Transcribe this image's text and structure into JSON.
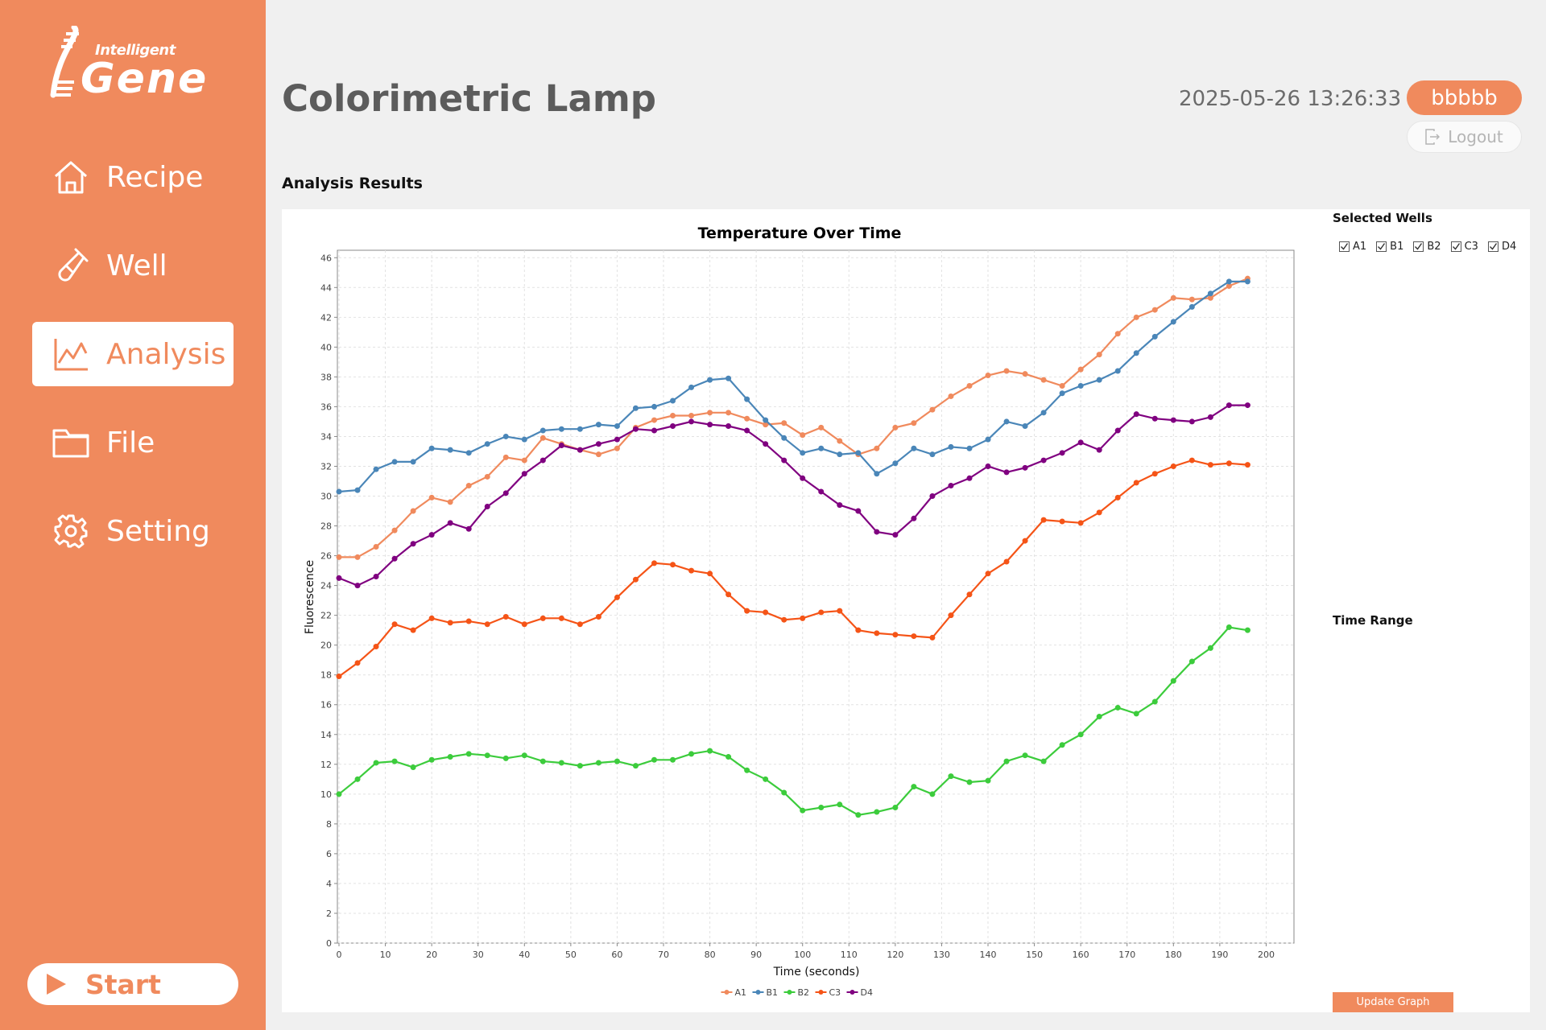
{
  "brand": {
    "small": "Intelligent",
    "big": "Gene"
  },
  "sidebar": {
    "items": [
      {
        "label": "Recipe",
        "icon": "home-icon"
      },
      {
        "label": "Well",
        "icon": "test-tube-icon"
      },
      {
        "label": "Analysis",
        "icon": "line-chart-icon",
        "active": true
      },
      {
        "label": "File",
        "icon": "folder-icon"
      },
      {
        "label": "Setting",
        "icon": "gear-icon"
      }
    ],
    "start_label": "Start"
  },
  "header": {
    "title": "Colorimetric Lamp",
    "datetime": "2025-05-26 13:26:33",
    "user": "bbbbb",
    "logout_label": "Logout"
  },
  "main": {
    "section_title": "Analysis Results",
    "selected_wells_label": "Selected Wells",
    "wells": [
      {
        "label": "A1",
        "checked": true
      },
      {
        "label": "B1",
        "checked": true
      },
      {
        "label": "B2",
        "checked": true
      },
      {
        "label": "C3",
        "checked": true
      },
      {
        "label": "D4",
        "checked": true
      }
    ],
    "time_range_label": "Time Range",
    "update_label": "Update Graph"
  },
  "colors": {
    "accent": "#f08a5d"
  },
  "chart_data": {
    "type": "line",
    "title": "Temperature Over Time",
    "xlabel": "Time (seconds)",
    "ylabel": "Fluorescence",
    "xlim": [
      0,
      206
    ],
    "ylim": [
      0,
      46.5
    ],
    "xticks": [
      0,
      10,
      20,
      30,
      40,
      50,
      60,
      70,
      80,
      90,
      100,
      110,
      120,
      130,
      140,
      150,
      160,
      170,
      180,
      190,
      200
    ],
    "yticks": [
      0,
      2,
      4,
      6,
      8,
      10,
      12,
      14,
      16,
      18,
      20,
      22,
      24,
      26,
      28,
      30,
      32,
      34,
      36,
      38,
      40,
      42,
      44,
      46
    ],
    "grid": true,
    "legend_position": "bottom-center",
    "x": [
      0,
      4,
      8,
      12,
      16,
      20,
      24,
      28,
      32,
      36,
      40,
      44,
      48,
      52,
      56,
      60,
      64,
      68,
      72,
      76,
      80,
      84,
      88,
      92,
      96,
      100,
      104,
      108,
      112,
      116,
      120,
      124,
      128,
      132,
      136,
      140,
      144,
      148,
      152,
      156,
      160,
      164,
      168,
      172,
      176,
      180,
      184,
      188,
      192,
      196
    ],
    "series": [
      {
        "name": "A1",
        "color": "#f08a5d",
        "values": [
          25.9,
          25.9,
          26.6,
          27.7,
          29.0,
          29.9,
          29.6,
          30.7,
          31.3,
          32.6,
          32.4,
          33.9,
          33.5,
          33.1,
          32.8,
          33.2,
          34.6,
          35.1,
          35.4,
          35.4,
          35.6,
          35.6,
          35.2,
          34.8,
          34.9,
          34.1,
          34.6,
          33.7,
          32.8,
          33.2,
          34.6,
          34.9,
          35.8,
          36.7,
          37.4,
          38.1,
          38.4,
          38.2,
          37.8,
          37.4,
          38.5,
          39.5,
          40.9,
          42.0,
          42.5,
          43.3,
          43.2,
          43.3,
          44.1,
          44.6
        ]
      },
      {
        "name": "B1",
        "color": "#4a86b8",
        "values": [
          30.3,
          30.4,
          31.8,
          32.3,
          32.3,
          33.2,
          33.1,
          32.9,
          33.5,
          34.0,
          33.8,
          34.4,
          34.5,
          34.5,
          34.8,
          34.7,
          35.9,
          36.0,
          36.4,
          37.3,
          37.8,
          37.9,
          36.5,
          35.1,
          33.9,
          32.9,
          33.2,
          32.8,
          32.9,
          31.5,
          32.2,
          33.2,
          32.8,
          33.3,
          33.2,
          33.8,
          35.0,
          34.7,
          35.6,
          36.9,
          37.4,
          37.8,
          38.4,
          39.6,
          40.7,
          41.7,
          42.7,
          43.6,
          44.4,
          44.4
        ]
      },
      {
        "name": "B2",
        "color": "#3ccc3c",
        "values": [
          10.0,
          11.0,
          12.1,
          12.2,
          11.8,
          12.3,
          12.5,
          12.7,
          12.6,
          12.4,
          12.6,
          12.2,
          12.1,
          11.9,
          12.1,
          12.2,
          11.9,
          12.3,
          12.3,
          12.7,
          12.9,
          12.5,
          11.6,
          11.0,
          10.1,
          8.9,
          9.1,
          9.3,
          8.6,
          8.8,
          9.1,
          10.5,
          10.0,
          11.2,
          10.8,
          10.9,
          12.2,
          12.6,
          12.2,
          13.3,
          14.0,
          15.2,
          15.8,
          15.4,
          16.2,
          17.6,
          18.9,
          19.8,
          21.2,
          21.0
        ]
      },
      {
        "name": "C3",
        "color": "#f55417",
        "values": [
          17.9,
          18.8,
          19.9,
          21.4,
          21.0,
          21.8,
          21.5,
          21.6,
          21.4,
          21.9,
          21.4,
          21.8,
          21.8,
          21.4,
          21.9,
          23.2,
          24.4,
          25.5,
          25.4,
          25.0,
          24.8,
          23.4,
          22.3,
          22.2,
          21.7,
          21.8,
          22.2,
          22.3,
          21.0,
          20.8,
          20.7,
          20.6,
          20.5,
          22.0,
          23.4,
          24.8,
          25.6,
          27.0,
          28.4,
          28.3,
          28.2,
          28.9,
          29.9,
          30.9,
          31.5,
          32.0,
          32.4,
          32.1,
          32.2,
          32.1
        ]
      },
      {
        "name": "D4",
        "color": "#800080",
        "values": [
          24.5,
          24.0,
          24.6,
          25.8,
          26.8,
          27.4,
          28.2,
          27.8,
          29.3,
          30.2,
          31.5,
          32.4,
          33.4,
          33.1,
          33.5,
          33.8,
          34.5,
          34.4,
          34.7,
          35.0,
          34.8,
          34.7,
          34.4,
          33.5,
          32.4,
          31.2,
          30.3,
          29.4,
          29.0,
          27.6,
          27.4,
          28.5,
          30.0,
          30.7,
          31.2,
          32.0,
          31.6,
          31.9,
          32.4,
          32.9,
          33.6,
          33.1,
          34.4,
          35.5,
          35.2,
          35.1,
          35.0,
          35.3,
          36.1,
          36.1
        ]
      }
    ]
  }
}
